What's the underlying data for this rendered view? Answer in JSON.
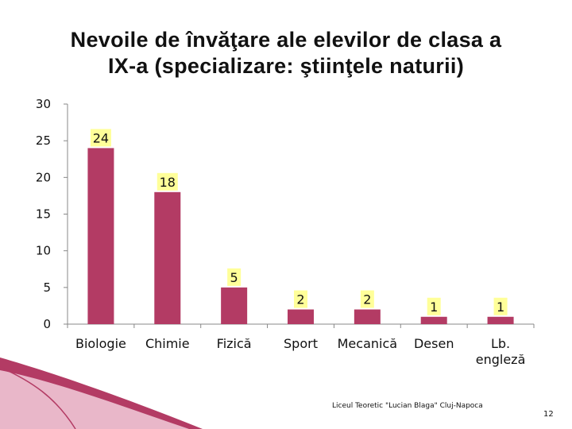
{
  "slide": {
    "title_line1": "Nevoile de învăţare ale elevilor de clasa a",
    "title_line2": "IX-a (specializare: ştiinţele naturii)",
    "footer": "Liceul Teoretic \"Lucian Blaga\" Cluj-Napoca",
    "page_number": "12"
  },
  "colors": {
    "bar": "#B33B64",
    "label_bg": "#FFFF99",
    "axis": "#888888",
    "decor_primary": "#B33B64",
    "decor_light": "#E9B7C9"
  },
  "chart_data": {
    "type": "bar",
    "categories": [
      "Biologie",
      "Chimie",
      "Fizică",
      "Sport",
      "Mecanică",
      "Desen",
      "Lb. engleză"
    ],
    "category_lines": [
      [
        "Biologie"
      ],
      [
        "Chimie"
      ],
      [
        "Fizică"
      ],
      [
        "Sport"
      ],
      [
        "Mecanică"
      ],
      [
        "Desen"
      ],
      [
        "Lb.",
        "engleză"
      ]
    ],
    "values": [
      24,
      18,
      5,
      2,
      2,
      1,
      1
    ],
    "data_labels": [
      "24",
      "18",
      "5",
      "2",
      "2",
      "1",
      "1"
    ],
    "y_ticks": [
      "0",
      "5",
      "10",
      "15",
      "20",
      "25",
      "30"
    ],
    "ylim": [
      0,
      30
    ],
    "title": "Nevoile de învăţare ale elevilor de clasa a IX-a (specializare: ştiinţele naturii)",
    "xlabel": "",
    "ylabel": "",
    "grid": false,
    "legend": "none"
  }
}
